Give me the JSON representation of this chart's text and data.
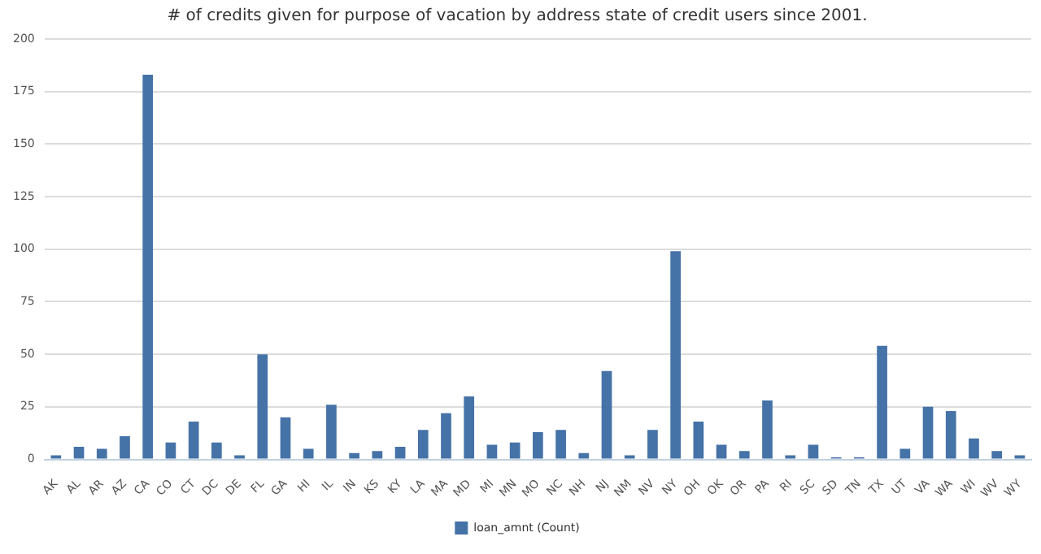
{
  "chart_data": {
    "type": "bar",
    "title": "# of credits given for purpose of vacation by address state of credit users since 2001.",
    "categories": [
      "AK",
      "AL",
      "AR",
      "AZ",
      "CA",
      "CO",
      "CT",
      "DC",
      "DE",
      "FL",
      "GA",
      "HI",
      "IL",
      "IN",
      "KS",
      "KY",
      "LA",
      "MA",
      "MD",
      "MI",
      "MN",
      "MO",
      "NC",
      "NH",
      "NJ",
      "NM",
      "NV",
      "NY",
      "OH",
      "OK",
      "OR",
      "PA",
      "RI",
      "SC",
      "SD",
      "TN",
      "TX",
      "UT",
      "VA",
      "WA",
      "WI",
      "WV",
      "WY"
    ],
    "series": [
      {
        "name": "loan_amnt (Count)",
        "color": "#4572a7",
        "values": [
          2,
          6,
          5,
          11,
          183,
          8,
          18,
          8,
          2,
          50,
          20,
          5,
          26,
          3,
          4,
          6,
          14,
          22,
          30,
          7,
          8,
          13,
          14,
          3,
          42,
          2,
          14,
          99,
          18,
          7,
          4,
          28,
          2,
          7,
          1,
          1,
          54,
          5,
          25,
          23,
          10,
          4,
          2
        ]
      }
    ],
    "ylim": [
      0,
      200
    ],
    "yticks": [
      0,
      25,
      50,
      75,
      100,
      125,
      150,
      175,
      200
    ],
    "grid": "y",
    "legend": "bottom"
  }
}
